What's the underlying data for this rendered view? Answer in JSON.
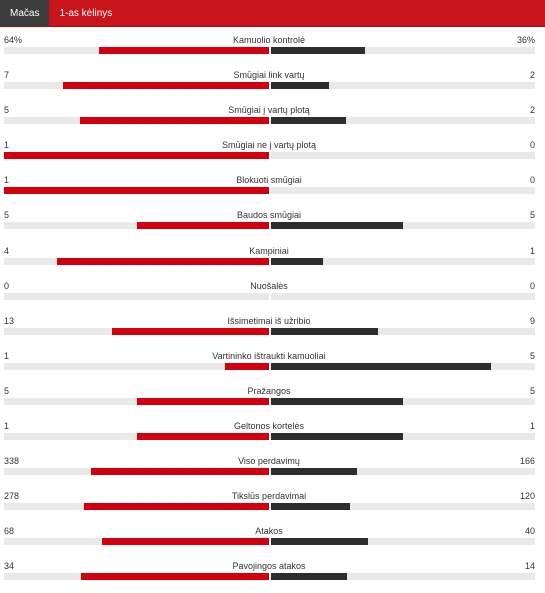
{
  "tabs": [
    {
      "label": "Mačas",
      "active": true
    },
    {
      "label": "1-as kėlinys",
      "active": false
    }
  ],
  "colors": {
    "header": "#c8151b",
    "home": "#d2000d",
    "away": "#2d2d2d",
    "track": "#e9e9e9"
  },
  "stats": [
    {
      "name": "Kamuolio kontrolė",
      "home": "64%",
      "away": "36%",
      "home_value": 64,
      "away_value": 36
    },
    {
      "name": "Smūgiai link vartų",
      "home": "7",
      "away": "2",
      "home_value": 7,
      "away_value": 2
    },
    {
      "name": "Smūgiai į vartų plotą",
      "home": "5",
      "away": "2",
      "home_value": 5,
      "away_value": 2
    },
    {
      "name": "Smūgiai ne į vartų plotą",
      "home": "1",
      "away": "0",
      "home_value": 1,
      "away_value": 0
    },
    {
      "name": "Blokuoti smūgiai",
      "home": "1",
      "away": "0",
      "home_value": 1,
      "away_value": 0
    },
    {
      "name": "Baudos smūgiai",
      "home": "5",
      "away": "5",
      "home_value": 5,
      "away_value": 5
    },
    {
      "name": "Kampiniai",
      "home": "4",
      "away": "1",
      "home_value": 4,
      "away_value": 1
    },
    {
      "name": "Nuošalės",
      "home": "0",
      "away": "0",
      "home_value": 0,
      "away_value": 0
    },
    {
      "name": "Išsimetimai iš užribio",
      "home": "13",
      "away": "9",
      "home_value": 13,
      "away_value": 9
    },
    {
      "name": "Vartininko ištraukti kamuoliai",
      "home": "1",
      "away": "5",
      "home_value": 1,
      "away_value": 5
    },
    {
      "name": "Pražangos",
      "home": "5",
      "away": "5",
      "home_value": 5,
      "away_value": 5
    },
    {
      "name": "Geltonos kortelės",
      "home": "1",
      "away": "1",
      "home_value": 1,
      "away_value": 1
    },
    {
      "name": "Viso perdavimų",
      "home": "338",
      "away": "166",
      "home_value": 338,
      "away_value": 166
    },
    {
      "name": "Tikslūs perdavimai",
      "home": "278",
      "away": "120",
      "home_value": 278,
      "away_value": 120
    },
    {
      "name": "Atakos",
      "home": "68",
      "away": "40",
      "home_value": 68,
      "away_value": 40
    },
    {
      "name": "Pavojingos atakos",
      "home": "34",
      "away": "14",
      "home_value": 34,
      "away_value": 14
    }
  ]
}
